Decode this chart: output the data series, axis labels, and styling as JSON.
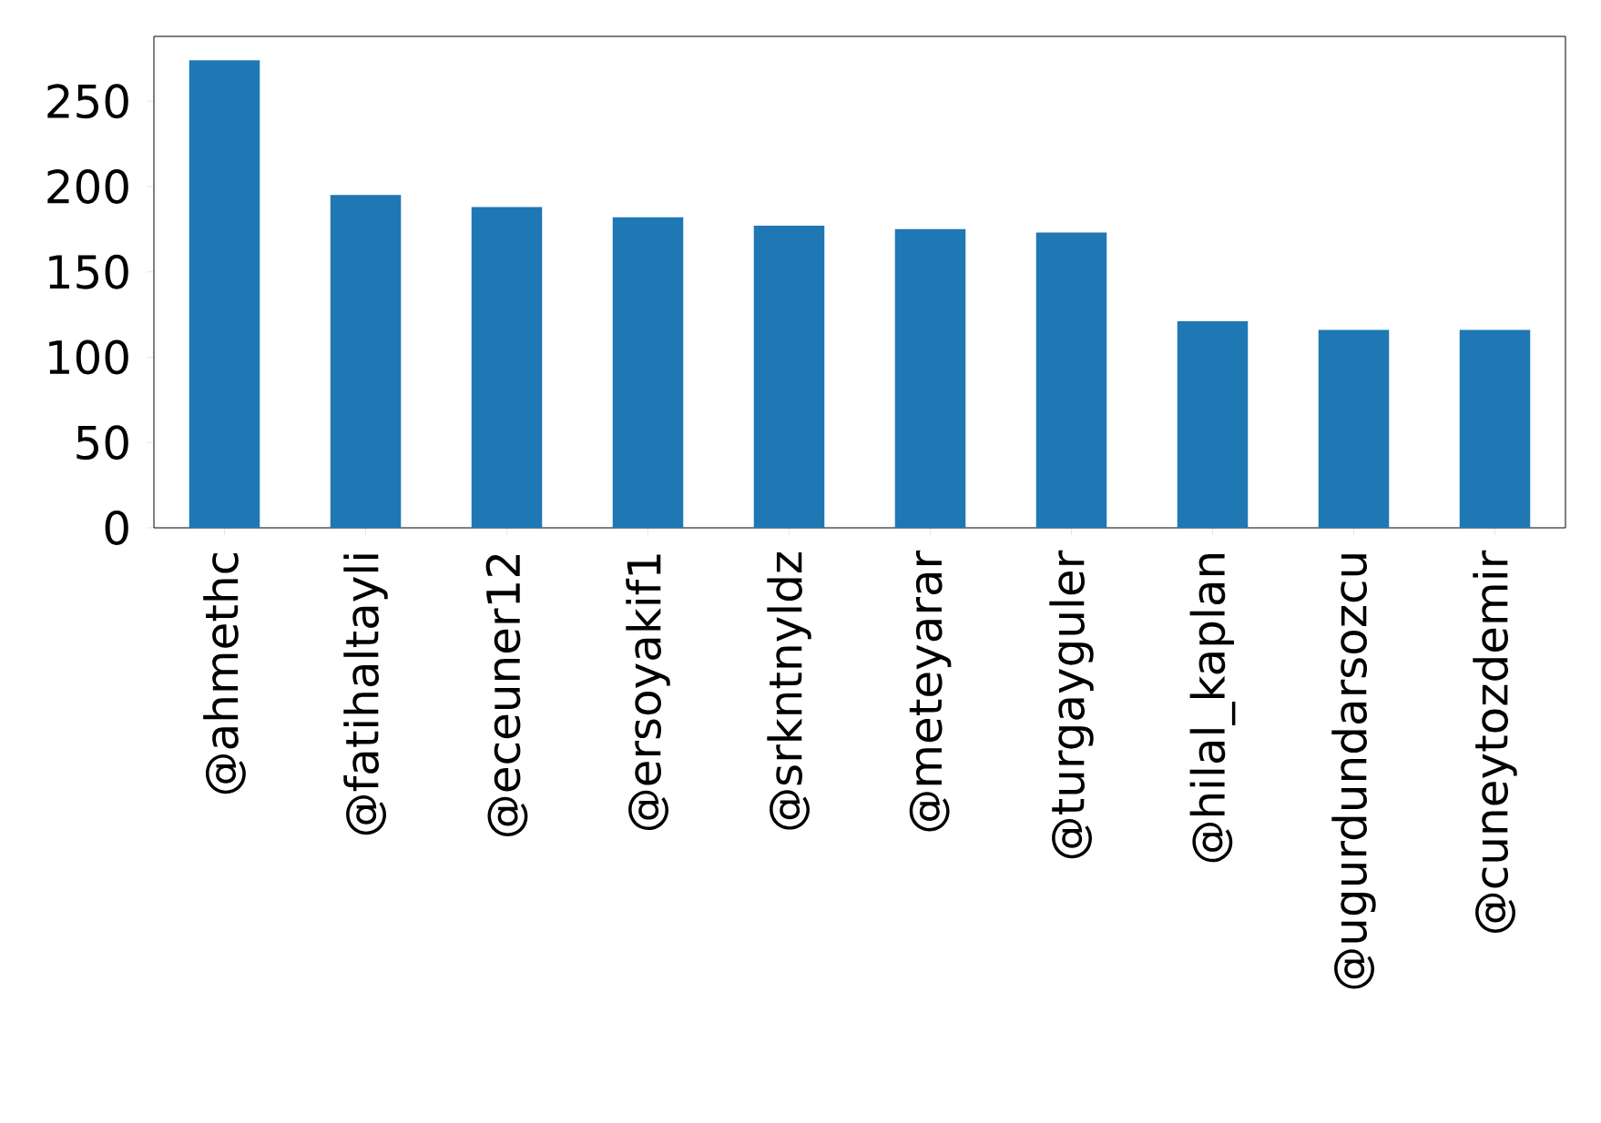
{
  "chart_data": {
    "type": "bar",
    "categories": [
      "@ahmethc",
      "@fatihaltayli",
      "@eceuner12",
      "@ersoyakif1",
      "@srkntnyldz",
      "@meteyarar",
      "@turgayguler",
      "@hilal_kaplan",
      "@ugurdundarsozcu",
      "@cuneytozdemir"
    ],
    "values": [
      274,
      195,
      188,
      182,
      177,
      175,
      173,
      121,
      116,
      116
    ],
    "color": "#1f77b4",
    "ylim": [
      0,
      288
    ],
    "yticks": [
      0,
      50,
      100,
      150,
      200,
      250
    ]
  }
}
